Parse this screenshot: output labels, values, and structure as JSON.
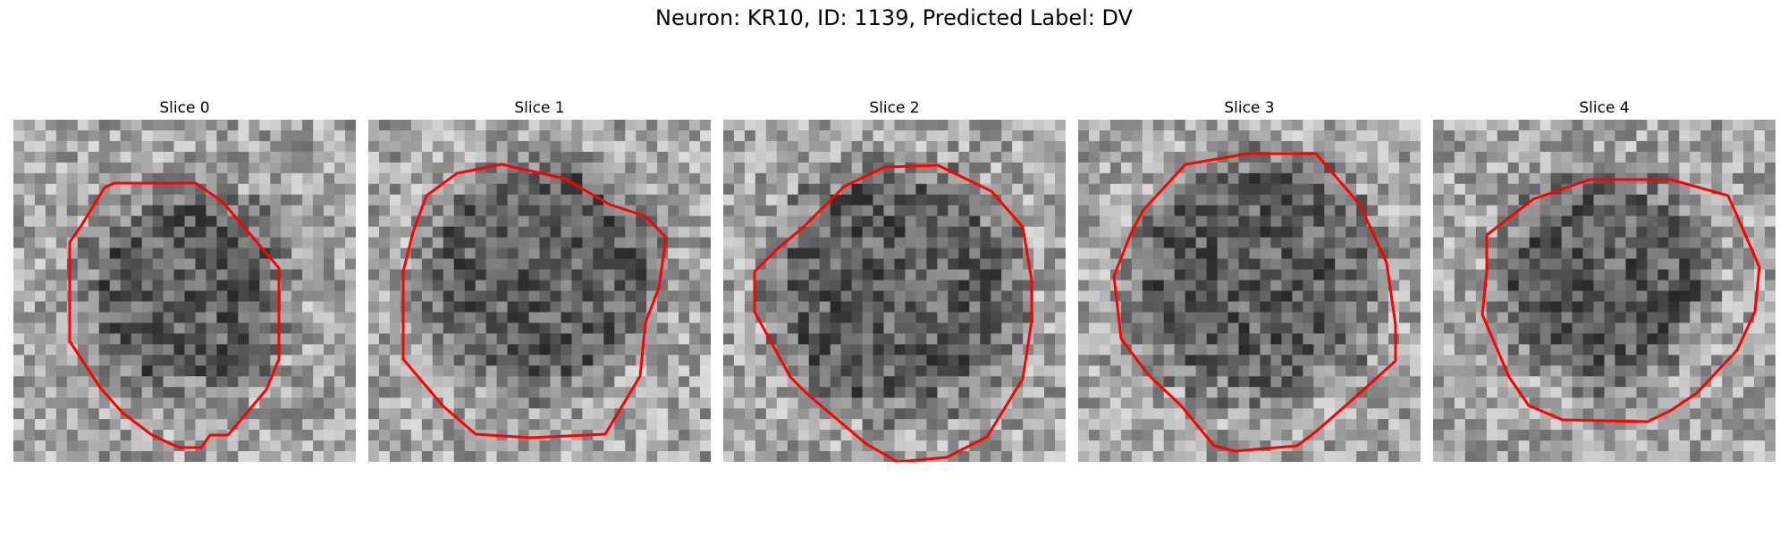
{
  "figure": {
    "title": "Neuron: KR10, ID: 1139, Predicted Label: DV"
  },
  "contour_color": "#ff0000",
  "panels": [
    {
      "title": "Slice 0",
      "seed": 11,
      "dark_center": [
        0.5,
        0.5
      ],
      "dark_radius": 0.3
    },
    {
      "title": "Slice 1",
      "seed": 23,
      "dark_center": [
        0.5,
        0.45
      ],
      "dark_radius": 0.34
    },
    {
      "title": "Slice 2",
      "seed": 37,
      "dark_center": [
        0.5,
        0.5
      ],
      "dark_radius": 0.36
    },
    {
      "title": "Slice 3",
      "seed": 41,
      "dark_center": [
        0.52,
        0.46
      ],
      "dark_radius": 0.36
    },
    {
      "title": "Slice 4",
      "seed": 53,
      "dark_center": [
        0.5,
        0.47
      ],
      "dark_radius": 0.31
    }
  ]
}
